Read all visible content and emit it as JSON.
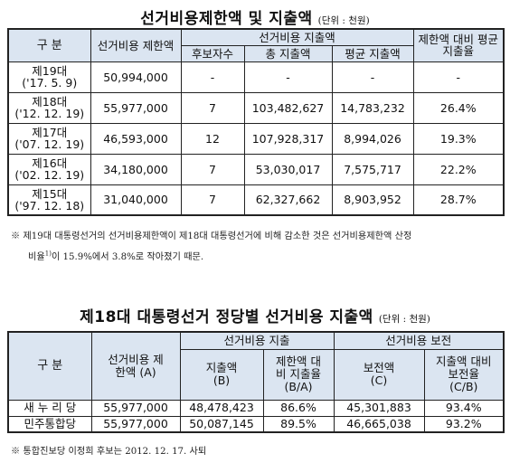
{
  "table1": {
    "title": "선거비용제한액 및 지출액",
    "unit": "(단위 : 천원)",
    "headers": {
      "category": "구  분",
      "limit": "선거비용 제한액",
      "spending_group": "선거비용 지출액",
      "candidates": "후보자수",
      "total": "총 지출액",
      "average": "평균 지출액",
      "ratio": "제한액 대비 평균 지출율"
    },
    "rows": [
      {
        "election": "제19대",
        "date": "('17. 5. 9)",
        "limit": "50,994,000",
        "candidates": "-",
        "total": "-",
        "average": "-",
        "ratio": "-"
      },
      {
        "election": "제18대",
        "date": "('12. 12. 19)",
        "limit": "55,977,000",
        "candidates": "7",
        "total": "103,482,627",
        "average": "14,783,232",
        "ratio": "26.4%"
      },
      {
        "election": "제17대",
        "date": "('07. 12. 19)",
        "limit": "46,593,000",
        "candidates": "12",
        "total": "107,928,317",
        "average": "8,994,026",
        "ratio": "19.3%"
      },
      {
        "election": "제16대",
        "date": "('02. 12. 19)",
        "limit": "34,180,000",
        "candidates": "7",
        "total": "53,030,017",
        "average": "7,575,717",
        "ratio": "22.2%"
      },
      {
        "election": "제15대",
        "date": "('97. 12. 18)",
        "limit": "31,040,000",
        "candidates": "7",
        "total": "62,327,662",
        "average": "8,903,952",
        "ratio": "28.7%"
      }
    ],
    "note_line1": "※ 제19대 대통령선거의 선거비용제한액이 제18대 대통령선거에 비해 감소한 것은 선거비용제한액 산정",
    "note_line2a": "비율",
    "note_sup": "1)",
    "note_line2b": "이 15.9%에서 3.8%로 작아졌기 때문."
  },
  "table2": {
    "title": "제18대 대통령선거 정당별 선거비용 지출액",
    "unit": "(단위 : 천원)",
    "headers": {
      "category": "구  분",
      "limit": "선거비용 제한액 (A)",
      "spending_group": "선거비용 지출",
      "reimb_group": "선거비용 보전",
      "spent": "지출액 (B)",
      "spent_ratio": "제한액 대비 지출율 (B/A)",
      "reimbursed": "보전액 (C)",
      "reimb_ratio": "지출액 대비 보전율 (C/B)"
    },
    "rows": [
      {
        "party": "새 누 리 당",
        "limit": "55,977,000",
        "spent": "48,478,423",
        "spent_ratio": "86.6%",
        "reimbursed": "45,301,883",
        "reimb_ratio": "93.4%"
      },
      {
        "party": "민주통합당",
        "limit": "55,977,000",
        "spent": "50,087,145",
        "spent_ratio": "89.5%",
        "reimbursed": "46,665,038",
        "reimb_ratio": "93.2%"
      }
    ],
    "note": "※ 통합진보당 이정희 후보는 2012. 12. 17. 사퇴"
  }
}
